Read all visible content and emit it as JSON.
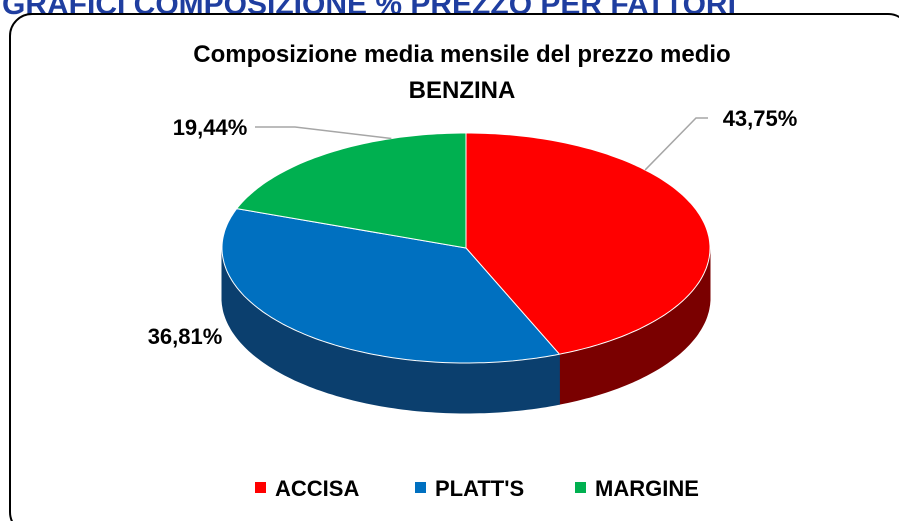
{
  "header": "GRAFICI COMPOSIZIONE % PREZZO PER FATTORI",
  "chart_data": {
    "type": "pie",
    "title": "Composizione media mensile del prezzo medio",
    "subtitle": "BENZINA",
    "categories": [
      "ACCISA",
      "PLATT'S",
      "MARGINE"
    ],
    "values": [
      43.75,
      36.81,
      19.44
    ],
    "value_labels": [
      "43,75%",
      "36,81%",
      "19,44%"
    ],
    "colors": [
      "#ff0000",
      "#0070c0",
      "#00b050"
    ],
    "side_colors": [
      "#7a0000",
      "#0b3f6e",
      "#006b30"
    ],
    "legend": "bottom"
  }
}
